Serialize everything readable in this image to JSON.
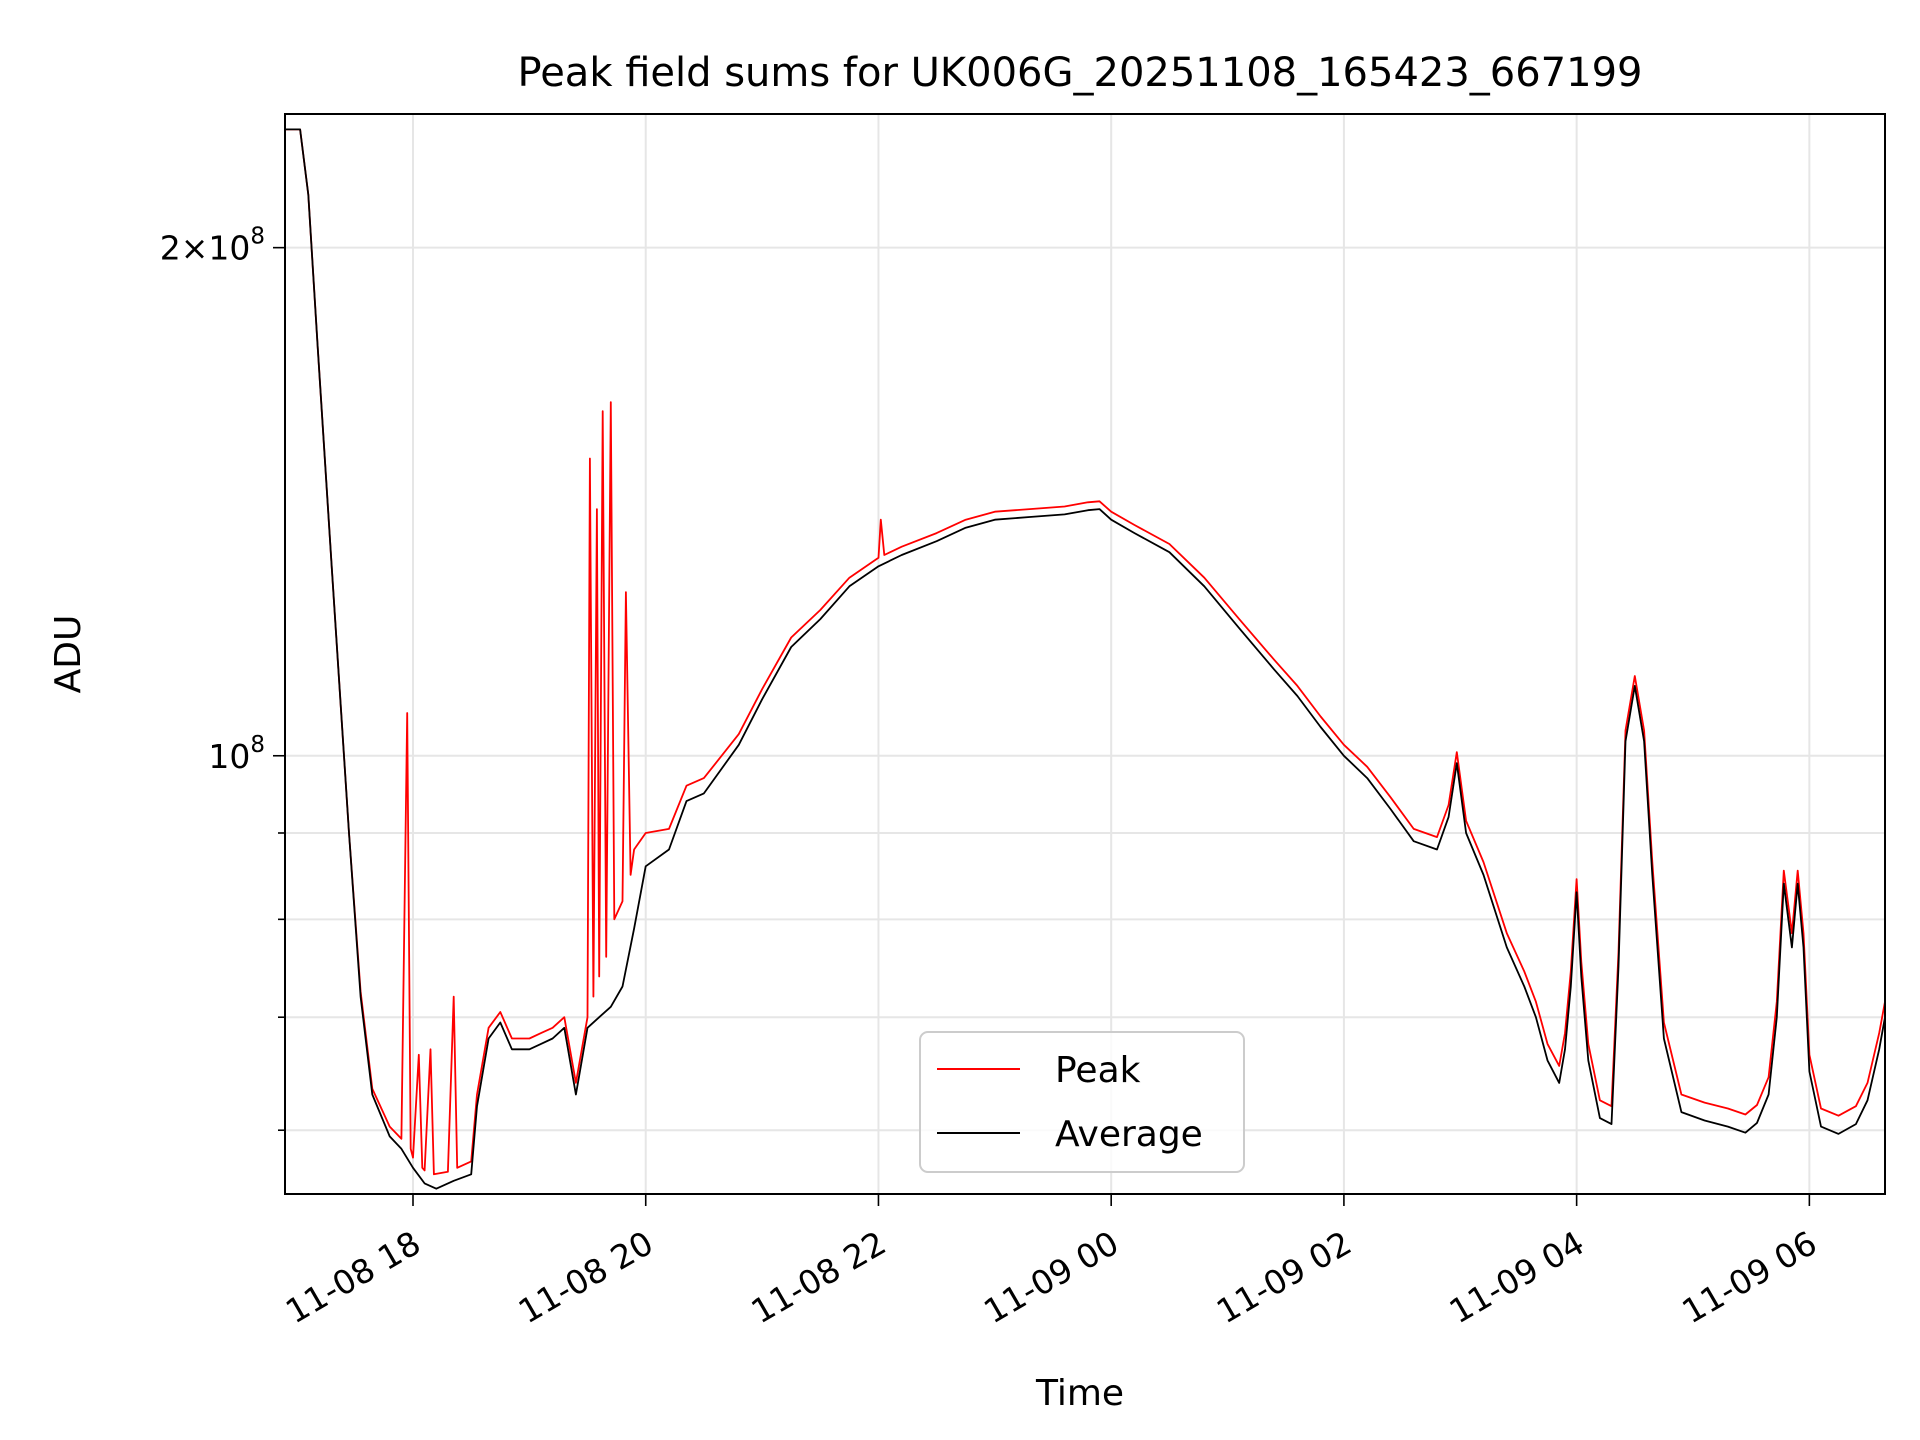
{
  "chart_data": {
    "type": "line",
    "title": "Peak field sums for UK006G_20251108_165423_667199",
    "xlabel": "Time",
    "ylabel": "ADU",
    "yscale": "log",
    "ylim": [
      55000000,
      240000000
    ],
    "xlim_hours": [
      16.9,
      30.65
    ],
    "grid": true,
    "legend": {
      "position": "lower center",
      "entries": [
        "Peak",
        "Average"
      ]
    },
    "xticks": [
      {
        "hour": 18,
        "label": "11-08 18"
      },
      {
        "hour": 20,
        "label": "11-08 20"
      },
      {
        "hour": 22,
        "label": "11-08 22"
      },
      {
        "hour": 24,
        "label": "11-09 00"
      },
      {
        "hour": 26,
        "label": "11-09 02"
      },
      {
        "hour": 28,
        "label": "11-09 04"
      },
      {
        "hour": 30,
        "label": "11-09 06"
      }
    ],
    "yticks_major": [
      {
        "value": 100000000,
        "label": "10",
        "exp": "8"
      },
      {
        "value": 200000000,
        "label": "2×10",
        "exp": "8"
      }
    ],
    "yticks_minor": [
      60000000,
      70000000,
      80000000,
      90000000
    ],
    "series": [
      {
        "name": "Average",
        "color": "#000000",
        "points": [
          [
            16.9,
            235000000
          ],
          [
            17.03,
            235000000
          ],
          [
            17.1,
            215000000
          ],
          [
            17.18,
            175000000
          ],
          [
            17.3,
            130000000
          ],
          [
            17.45,
            90000000
          ],
          [
            17.55,
            72000000
          ],
          [
            17.65,
            63000000
          ],
          [
            17.8,
            59500000
          ],
          [
            17.9,
            58500000
          ],
          [
            18.0,
            57000000
          ],
          [
            18.1,
            55800000
          ],
          [
            18.2,
            55400000
          ],
          [
            18.35,
            56000000
          ],
          [
            18.5,
            56500000
          ],
          [
            18.55,
            62000000
          ],
          [
            18.65,
            68000000
          ],
          [
            18.75,
            69500000
          ],
          [
            18.85,
            67000000
          ],
          [
            19.0,
            67000000
          ],
          [
            19.1,
            67500000
          ],
          [
            19.2,
            68000000
          ],
          [
            19.3,
            69000000
          ],
          [
            19.4,
            63000000
          ],
          [
            19.5,
            69000000
          ],
          [
            19.6,
            70000000
          ],
          [
            19.7,
            71000000
          ],
          [
            19.8,
            73000000
          ],
          [
            19.9,
            79000000
          ],
          [
            20.0,
            86000000
          ],
          [
            20.2,
            88000000
          ],
          [
            20.35,
            94000000
          ],
          [
            20.5,
            95000000
          ],
          [
            20.8,
            101500000
          ],
          [
            21.0,
            108000000
          ],
          [
            21.25,
            116000000
          ],
          [
            21.5,
            120500000
          ],
          [
            21.75,
            126000000
          ],
          [
            22.0,
            129500000
          ],
          [
            22.2,
            131500000
          ],
          [
            22.5,
            134000000
          ],
          [
            22.75,
            136500000
          ],
          [
            23.0,
            138000000
          ],
          [
            23.3,
            138500000
          ],
          [
            23.6,
            139000000
          ],
          [
            23.8,
            139800000
          ],
          [
            23.9,
            140000000
          ],
          [
            24.0,
            138000000
          ],
          [
            24.2,
            135500000
          ],
          [
            24.5,
            132000000
          ],
          [
            24.8,
            126000000
          ],
          [
            25.1,
            119000000
          ],
          [
            25.4,
            112500000
          ],
          [
            25.6,
            108500000
          ],
          [
            25.8,
            104000000
          ],
          [
            26.0,
            100000000
          ],
          [
            26.2,
            97000000
          ],
          [
            26.4,
            93000000
          ],
          [
            26.6,
            89000000
          ],
          [
            26.8,
            88000000
          ],
          [
            26.9,
            92000000
          ],
          [
            26.97,
            99000000
          ],
          [
            27.05,
            90000000
          ],
          [
            27.2,
            85000000
          ],
          [
            27.4,
            77000000
          ],
          [
            27.55,
            73000000
          ],
          [
            27.65,
            70000000
          ],
          [
            27.75,
            66000000
          ],
          [
            27.85,
            64000000
          ],
          [
            27.9,
            67000000
          ],
          [
            27.95,
            73000000
          ],
          [
            28.0,
            83000000
          ],
          [
            28.04,
            74000000
          ],
          [
            28.1,
            66000000
          ],
          [
            28.2,
            61000000
          ],
          [
            28.3,
            60500000
          ],
          [
            28.36,
            75000000
          ],
          [
            28.42,
            102000000
          ],
          [
            28.5,
            110000000
          ],
          [
            28.58,
            102000000
          ],
          [
            28.65,
            85000000
          ],
          [
            28.75,
            68000000
          ],
          [
            28.9,
            61500000
          ],
          [
            29.1,
            60800000
          ],
          [
            29.3,
            60300000
          ],
          [
            29.45,
            59800000
          ],
          [
            29.55,
            60600000
          ],
          [
            29.65,
            63000000
          ],
          [
            29.72,
            70000000
          ],
          [
            29.78,
            84000000
          ],
          [
            29.85,
            77000000
          ],
          [
            29.9,
            84000000
          ],
          [
            29.95,
            77000000
          ],
          [
            30.0,
            65000000
          ],
          [
            30.1,
            60300000
          ],
          [
            30.25,
            59700000
          ],
          [
            30.4,
            60500000
          ],
          [
            30.5,
            62500000
          ],
          [
            30.6,
            67000000
          ],
          [
            30.65,
            70000000
          ]
        ]
      },
      {
        "name": "Peak",
        "color": "#ff0000",
        "points": [
          [
            16.9,
            235000000
          ],
          [
            17.03,
            235000000
          ],
          [
            17.1,
            215000000
          ],
          [
            17.18,
            175000000
          ],
          [
            17.3,
            130000000
          ],
          [
            17.45,
            90000000
          ],
          [
            17.55,
            72500000
          ],
          [
            17.65,
            63500000
          ],
          [
            17.8,
            60300000
          ],
          [
            17.9,
            59300000
          ],
          [
            17.95,
            106000000
          ],
          [
            17.98,
            58500000
          ],
          [
            18.0,
            57800000
          ],
          [
            18.05,
            66500000
          ],
          [
            18.08,
            57000000
          ],
          [
            18.1,
            56800000
          ],
          [
            18.15,
            67000000
          ],
          [
            18.18,
            56500000
          ],
          [
            18.3,
            56700000
          ],
          [
            18.35,
            72000000
          ],
          [
            18.38,
            57000000
          ],
          [
            18.5,
            57500000
          ],
          [
            18.55,
            63000000
          ],
          [
            18.65,
            69000000
          ],
          [
            18.75,
            70500000
          ],
          [
            18.85,
            68000000
          ],
          [
            19.0,
            68000000
          ],
          [
            19.1,
            68500000
          ],
          [
            19.2,
            69000000
          ],
          [
            19.3,
            70000000
          ],
          [
            19.4,
            64000000
          ],
          [
            19.5,
            70000000
          ],
          [
            19.52,
            150000000
          ],
          [
            19.55,
            72000000
          ],
          [
            19.58,
            140000000
          ],
          [
            19.6,
            74000000
          ],
          [
            19.63,
            160000000
          ],
          [
            19.66,
            76000000
          ],
          [
            19.7,
            162000000
          ],
          [
            19.73,
            80000000
          ],
          [
            19.8,
            82000000
          ],
          [
            19.83,
            125000000
          ],
          [
            19.87,
            85000000
          ],
          [
            19.9,
            88000000
          ],
          [
            20.0,
            90000000
          ],
          [
            20.2,
            90500000
          ],
          [
            20.35,
            96000000
          ],
          [
            20.5,
            97000000
          ],
          [
            20.8,
            103000000
          ],
          [
            21.0,
            109500000
          ],
          [
            21.25,
            117500000
          ],
          [
            21.5,
            122000000
          ],
          [
            21.75,
            127500000
          ],
          [
            22.0,
            131000000
          ],
          [
            22.02,
            138000000
          ],
          [
            22.05,
            131500000
          ],
          [
            22.2,
            133000000
          ],
          [
            22.5,
            135500000
          ],
          [
            22.75,
            138000000
          ],
          [
            23.0,
            139500000
          ],
          [
            23.3,
            140000000
          ],
          [
            23.6,
            140500000
          ],
          [
            23.8,
            141300000
          ],
          [
            23.9,
            141500000
          ],
          [
            24.0,
            139500000
          ],
          [
            24.2,
            137000000
          ],
          [
            24.5,
            133500000
          ],
          [
            24.8,
            127500000
          ],
          [
            25.1,
            120500000
          ],
          [
            25.4,
            114000000
          ],
          [
            25.6,
            110000000
          ],
          [
            25.8,
            105500000
          ],
          [
            26.0,
            101500000
          ],
          [
            26.2,
            98500000
          ],
          [
            26.4,
            94500000
          ],
          [
            26.6,
            90500000
          ],
          [
            26.8,
            89500000
          ],
          [
            26.9,
            93500000
          ],
          [
            26.97,
            100500000
          ],
          [
            27.05,
            91500000
          ],
          [
            27.2,
            86500000
          ],
          [
            27.4,
            78500000
          ],
          [
            27.55,
            74500000
          ],
          [
            27.65,
            71500000
          ],
          [
            27.75,
            67500000
          ],
          [
            27.85,
            65500000
          ],
          [
            27.9,
            68500000
          ],
          [
            27.95,
            74500000
          ],
          [
            28.0,
            84500000
          ],
          [
            28.04,
            75500000
          ],
          [
            28.1,
            67500000
          ],
          [
            28.2,
            62500000
          ],
          [
            28.3,
            62000000
          ],
          [
            28.36,
            76500000
          ],
          [
            28.42,
            103500000
          ],
          [
            28.5,
            111500000
          ],
          [
            28.58,
            103500000
          ],
          [
            28.65,
            86500000
          ],
          [
            28.75,
            69500000
          ],
          [
            28.9,
            63000000
          ],
          [
            29.1,
            62300000
          ],
          [
            29.3,
            61800000
          ],
          [
            29.45,
            61300000
          ],
          [
            29.55,
            62100000
          ],
          [
            29.65,
            64500000
          ],
          [
            29.72,
            71500000
          ],
          [
            29.78,
            85500000
          ],
          [
            29.85,
            78500000
          ],
          [
            29.9,
            85500000
          ],
          [
            29.95,
            78500000
          ],
          [
            30.0,
            66500000
          ],
          [
            30.1,
            61800000
          ],
          [
            30.25,
            61200000
          ],
          [
            30.4,
            62000000
          ],
          [
            30.5,
            64000000
          ],
          [
            30.6,
            68500000
          ],
          [
            30.65,
            71500000
          ]
        ]
      }
    ]
  }
}
